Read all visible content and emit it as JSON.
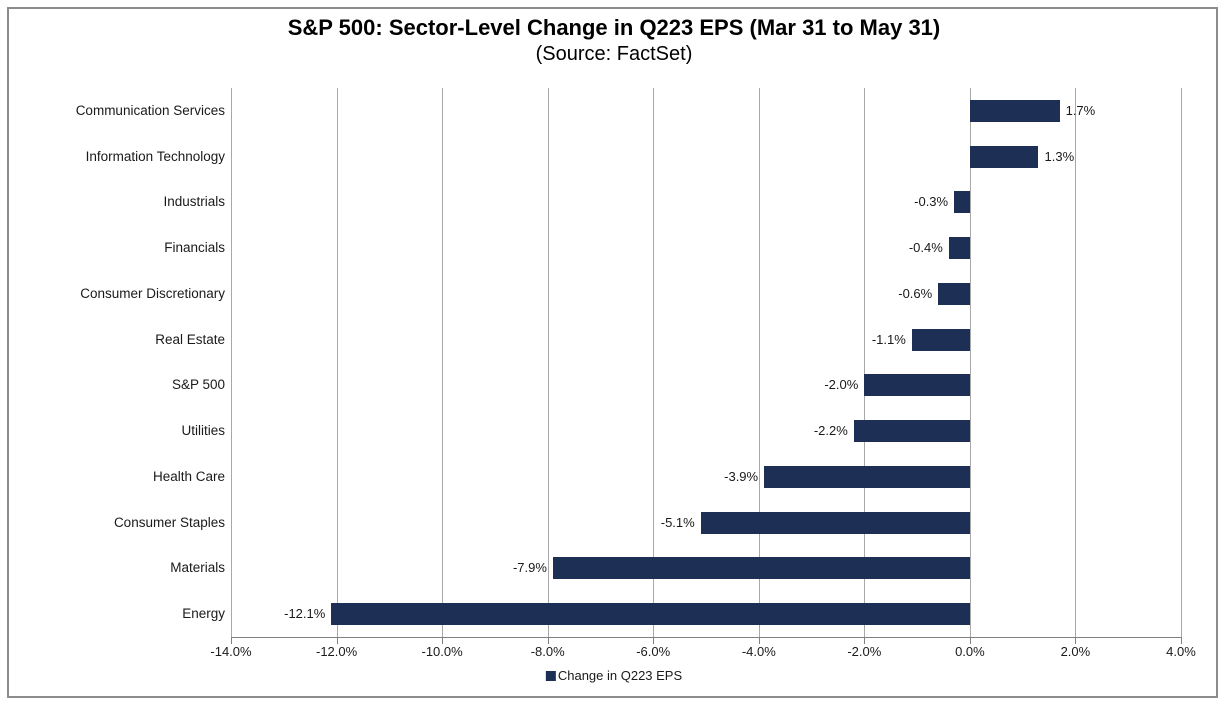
{
  "chart_data": {
    "type": "bar",
    "orientation": "horizontal",
    "title": "S&P 500: Sector-Level Change in Q223 EPS (Mar 31 to May 31)",
    "subtitle": "(Source: FactSet)",
    "categories": [
      "Communication Services",
      "Information Technology",
      "Industrials",
      "Financials",
      "Consumer Discretionary",
      "Real Estate",
      "S&P 500",
      "Utilities",
      "Health Care",
      "Consumer Staples",
      "Materials",
      "Energy"
    ],
    "series": [
      {
        "name": "Change in Q223 EPS",
        "values": [
          1.7,
          1.3,
          -0.3,
          -0.4,
          -0.6,
          -1.1,
          -2.0,
          -2.2,
          -3.9,
          -5.1,
          -7.9,
          -12.1
        ],
        "color": "#1e2f55"
      }
    ],
    "data_labels": [
      "1.7%",
      "1.3%",
      "-0.3%",
      "-0.4%",
      "-0.6%",
      "-1.1%",
      "-2.0%",
      "-2.2%",
      "-3.9%",
      "-5.1%",
      "-7.9%",
      "-12.1%"
    ],
    "x_ticks": [
      {
        "value": -14,
        "label": "-14.0%"
      },
      {
        "value": -12,
        "label": "-12.0%"
      },
      {
        "value": -10,
        "label": "-10.0%"
      },
      {
        "value": -8,
        "label": "-8.0%"
      },
      {
        "value": -6,
        "label": "-6.0%"
      },
      {
        "value": -4,
        "label": "-4.0%"
      },
      {
        "value": -2,
        "label": "-2.0%"
      },
      {
        "value": 0,
        "label": "0.0%"
      },
      {
        "value": 2,
        "label": "2.0%"
      },
      {
        "value": 4,
        "label": "4.0%"
      }
    ],
    "xlim": [
      -14,
      4
    ],
    "grid": true,
    "legend_position": "bottom",
    "colors": {
      "bar": "#1e2f55",
      "gridline": "#a8a8a8",
      "axis": "#808080",
      "frame_border": "#8c8c8c",
      "text": "#1a1a1a",
      "background": "#ffffff"
    }
  }
}
